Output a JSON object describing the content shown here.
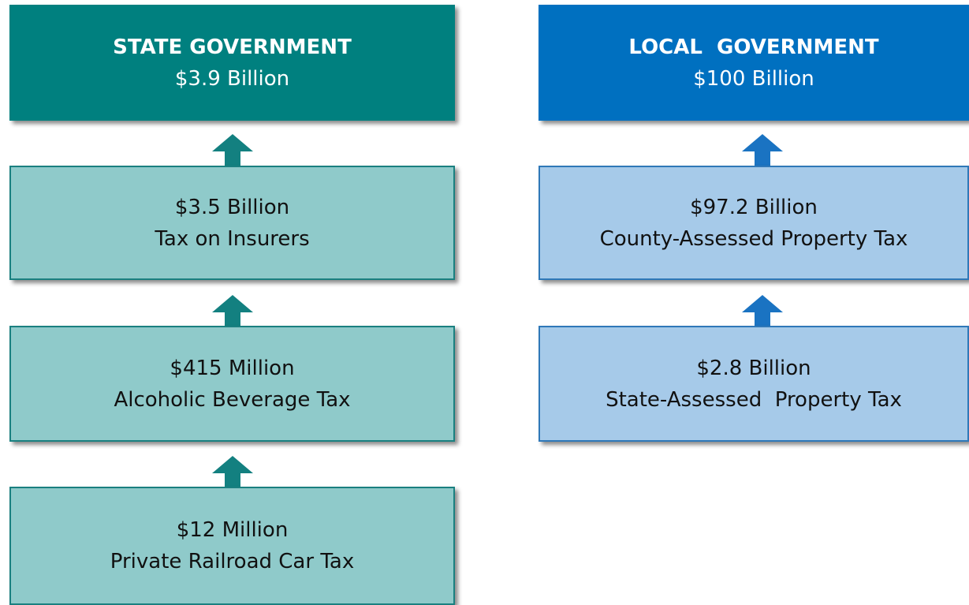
{
  "columns": [
    {
      "header": {
        "title": "STATE GOVERNMENT",
        "amount": "$3.9 Billion"
      },
      "boxes": [
        {
          "amount": "$3.5 Billion",
          "label": "Tax on Insurers"
        },
        {
          "amount": "$415 Million",
          "label": "Alcoholic Beverage Tax"
        },
        {
          "amount": "$12 Million",
          "label": "Private Railroad Car Tax"
        }
      ]
    },
    {
      "header": {
        "title": "LOCAL  GOVERNMENT",
        "amount": "$100 Billion"
      },
      "boxes": [
        {
          "amount": "$97.2 Billion",
          "label": "County-Assessed Property Tax"
        },
        {
          "amount": "$2.8 Billion",
          "label": "State-Assessed  Property Tax"
        }
      ]
    }
  ]
}
